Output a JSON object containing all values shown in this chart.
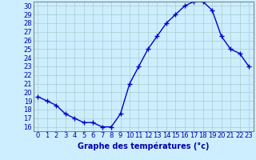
{
  "x": [
    0,
    1,
    2,
    3,
    4,
    5,
    6,
    7,
    8,
    9,
    10,
    11,
    12,
    13,
    14,
    15,
    16,
    17,
    18,
    19,
    20,
    21,
    22,
    23
  ],
  "y": [
    19.5,
    19.0,
    18.5,
    17.5,
    17.0,
    16.5,
    16.5,
    16.0,
    16.0,
    17.5,
    21.0,
    23.0,
    25.0,
    26.5,
    28.0,
    29.0,
    30.0,
    30.5,
    30.5,
    29.5,
    26.5,
    25.0,
    24.5,
    23.0
  ],
  "line_color": "#0000cc",
  "marker": "+",
  "marker_size": 4,
  "marker_linewidth": 1.0,
  "line_width": 1.0,
  "bg_color": "#cceeff",
  "grid_color": "#aacccc",
  "xlabel": "Graphe des températures (°c)",
  "xlabel_fontsize": 7,
  "ylim_min": 15.5,
  "ylim_max": 30.5,
  "xlim_min": -0.5,
  "xlim_max": 23.5,
  "yticks": [
    16,
    17,
    18,
    19,
    20,
    21,
    22,
    23,
    24,
    25,
    26,
    27,
    28,
    29,
    30
  ],
  "xticks": [
    0,
    1,
    2,
    3,
    4,
    5,
    6,
    7,
    8,
    9,
    10,
    11,
    12,
    13,
    14,
    15,
    16,
    17,
    18,
    19,
    20,
    21,
    22,
    23
  ],
  "tick_fontsize": 6,
  "axis_color": "#0000aa",
  "spine_color": "#555555"
}
